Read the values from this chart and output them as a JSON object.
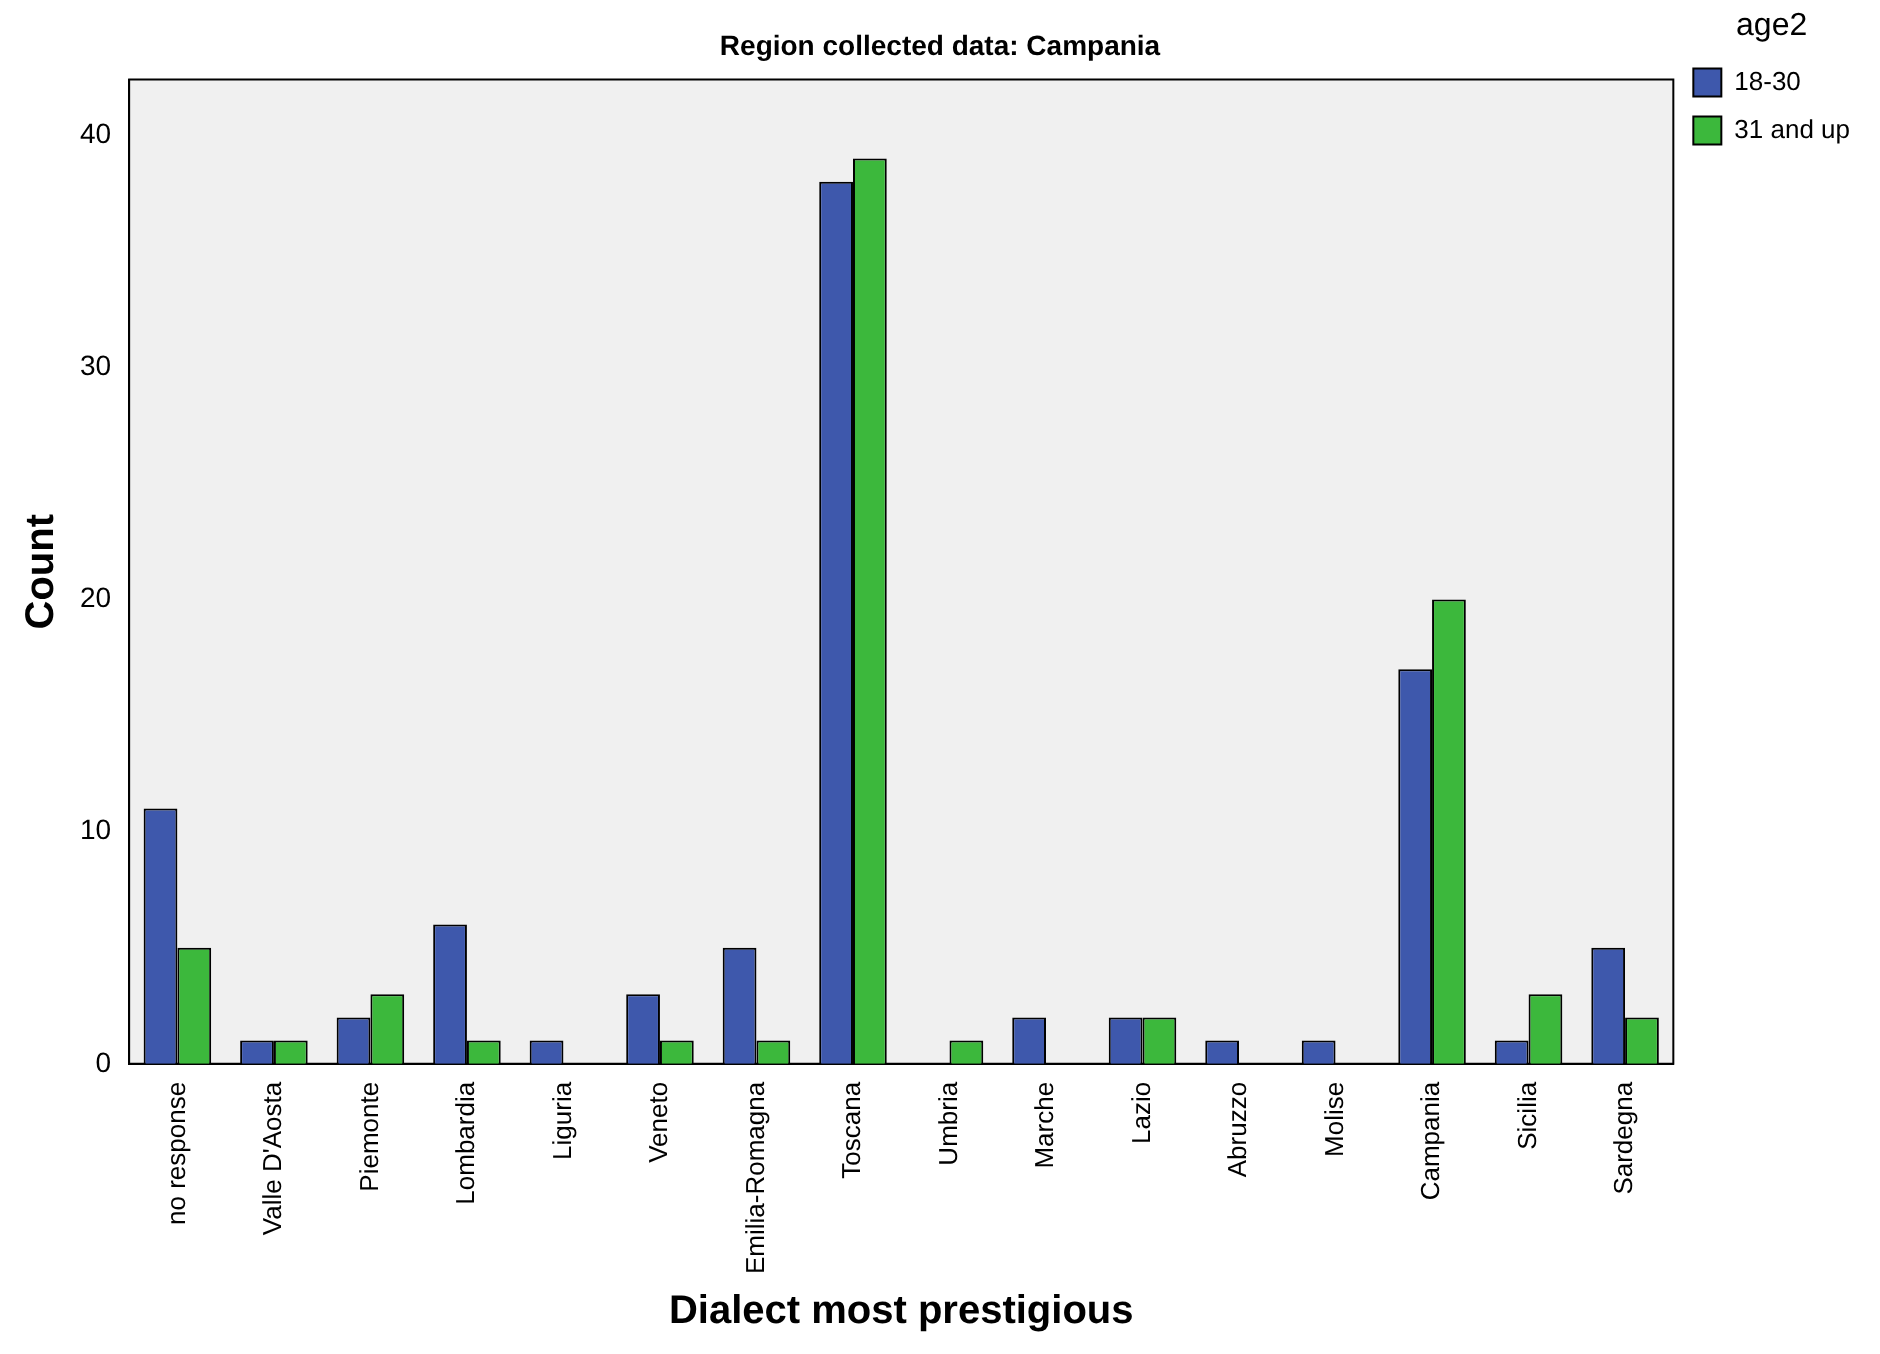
{
  "chart_data": {
    "type": "bar",
    "title": "Region collected data: Campania",
    "xlabel": "Dialect most prestigious",
    "ylabel": "Count",
    "legend_title": "age2",
    "categories": [
      "no response",
      "Valle D'Aosta",
      "Piemonte",
      "Lombardia",
      "Liguria",
      "Veneto",
      "Emilia-Romagna",
      "Toscana",
      "Umbria",
      "Marche",
      "Lazio",
      "Abruzzo",
      "Molise",
      "Campania",
      "Sicilia",
      "Sardegna"
    ],
    "series": [
      {
        "name": "18-30",
        "color": "#3e58ac",
        "values": [
          11,
          1,
          2,
          6,
          1,
          3,
          5,
          38,
          0,
          2,
          2,
          1,
          1,
          17,
          1,
          5
        ]
      },
      {
        "name": "31 and up",
        "color": "#3cb83c",
        "values": [
          5,
          1,
          3,
          1,
          0,
          1,
          1,
          39,
          1,
          0,
          2,
          0,
          0,
          20,
          3,
          2
        ]
      }
    ],
    "ylim": [
      0,
      42.4
    ],
    "yticks": [
      0,
      10,
      20,
      30,
      40
    ],
    "grid": false,
    "legend": "top right"
  }
}
